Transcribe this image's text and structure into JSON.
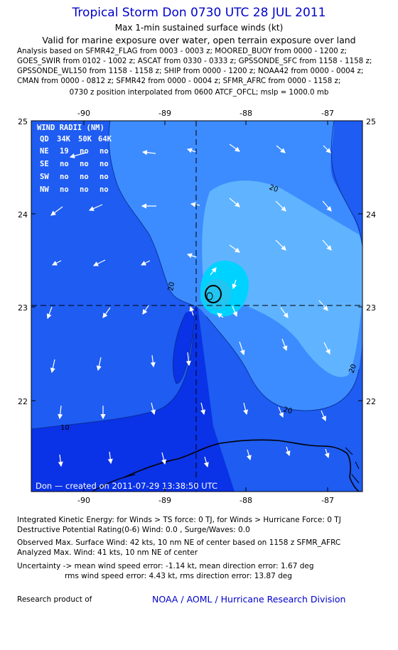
{
  "header": {
    "title": "Tropical Storm Don 0730 UTC 28 JUL 2011",
    "subtitle1": "Max 1-min sustained surface winds (kt)",
    "subtitle2": "Valid for marine exposure over water, open terrain exposure over land",
    "analysis_lines": [
      "Analysis based on SFMR42_FLAG from 0003 - 0003 z; MOORED_BUOY from 0000 - 1200 z;",
      "GOES_SWIR from 0102 - 1002 z; ASCAT from 0330 - 0333 z; GPSSONDE_SFC from 1158 - 1158 z;",
      "GPSSONDE_WL150 from 1158 - 1158 z; SHIP from 0000 - 1200 z; NOAA42 from 0000 - 0004 z;",
      "CMAN from 0000 - 0812 z; SFMR42 from 0000 - 0004 z; SFMR_AFRC from 0000 - 1158 z;"
    ],
    "interp_line": "0730 z position interpolated from 0600 ATCF_OFCL; mslp = 1000.0 mb"
  },
  "map": {
    "lon_ticks": [
      "-90",
      "-89",
      "-88",
      "-87"
    ],
    "lat_ticks": [
      "25",
      "24",
      "23",
      "22"
    ],
    "wind_radii": {
      "title": "WIND RADII (NM)",
      "header": [
        "QD",
        "34K",
        "50K",
        "64K"
      ],
      "rows": [
        {
          "q": "NE",
          "v34": "19",
          "v50": "no",
          "v64": "no"
        },
        {
          "q": "SE",
          "v34": "no",
          "v50": "no",
          "v64": "no"
        },
        {
          "q": "SW",
          "v34": "no",
          "v50": "no",
          "v64": "no"
        },
        {
          "q": "NW",
          "v34": "no",
          "v50": "no",
          "v64": "no"
        }
      ]
    },
    "contour_labels": [
      "20",
      "20",
      "20",
      "20",
      "10"
    ],
    "footer": "Don — created on 2011-07-29 13:38:50 UTC",
    "colors": {
      "deep": "#0a32e6",
      "base": "#1e5cf2",
      "mid": "#3c8cff",
      "light": "#60b4ff",
      "cyan": "#00d2ff",
      "inner": "#22c4f0"
    }
  },
  "footer": {
    "ike": "Integrated Kinetic Energy:  for Winds > TS force: 0 TJ,  for Winds > Hurricane Force: 0 TJ",
    "dpr": "Destructive Potential Rating(0-6)   Wind: 0.0 , Surge/Waves: 0.0",
    "obs_max": "Observed Max. Surface Wind: 42 kts, 10 nm NE of center based on 1158 z SFMR_AFRC",
    "ana_max": "Analyzed Max. Wind: 41 kts, 10 nm NE of center",
    "unc1": "Uncertainty -> mean wind speed error:  -1.14 kt,   mean direction error: 1.67 deg",
    "unc2": "rms wind speed error: 4.43 kt,   rms direction error: 13.87 deg",
    "research": "Research product of",
    "credit": "NOAA / AOML / Hurricane Research Division"
  }
}
